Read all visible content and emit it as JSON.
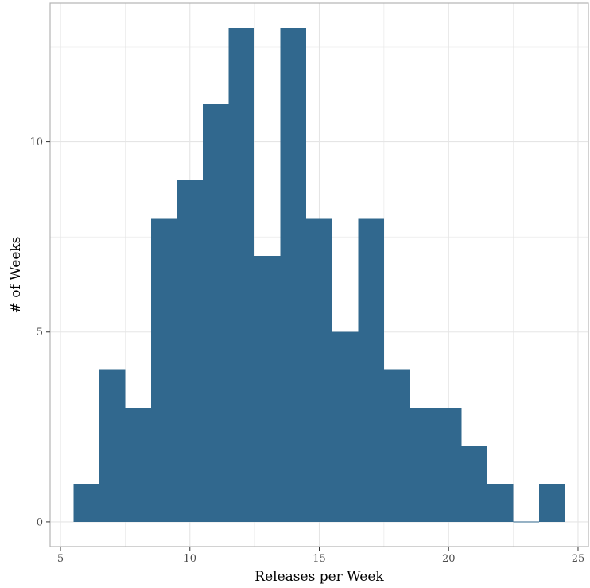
{
  "chart_data": {
    "type": "bar",
    "subtype": "histogram",
    "title": "",
    "xlabel": "Releases per Week",
    "ylabel": "# of Weeks",
    "bin_width": 1,
    "bins": [
      {
        "x": 6,
        "count": 1
      },
      {
        "x": 7,
        "count": 4
      },
      {
        "x": 8,
        "count": 3
      },
      {
        "x": 9,
        "count": 8
      },
      {
        "x": 10,
        "count": 9
      },
      {
        "x": 11,
        "count": 11
      },
      {
        "x": 12,
        "count": 13
      },
      {
        "x": 13,
        "count": 7
      },
      {
        "x": 14,
        "count": 13
      },
      {
        "x": 15,
        "count": 8
      },
      {
        "x": 16,
        "count": 5
      },
      {
        "x": 17,
        "count": 8
      },
      {
        "x": 18,
        "count": 4
      },
      {
        "x": 19,
        "count": 3
      },
      {
        "x": 20,
        "count": 3
      },
      {
        "x": 21,
        "count": 2
      },
      {
        "x": 22,
        "count": 1
      },
      {
        "x": 23,
        "count": 0
      },
      {
        "x": 24,
        "count": 1
      }
    ],
    "xlim": [
      4.6,
      25.4
    ],
    "ylim": [
      -0.65,
      13.65
    ],
    "xticks": [
      5,
      10,
      15,
      20,
      25
    ],
    "yticks": [
      0,
      5,
      10
    ],
    "x_minor_ticks": [
      7.5,
      12.5,
      17.5,
      22.5
    ],
    "y_minor_ticks": [
      2.5,
      7.5,
      12.5
    ],
    "grid": true,
    "legend": "none",
    "colors": {
      "bar": "#31688e",
      "grid": "#e5e5e5",
      "panel_border": "#b3b3b3"
    }
  }
}
